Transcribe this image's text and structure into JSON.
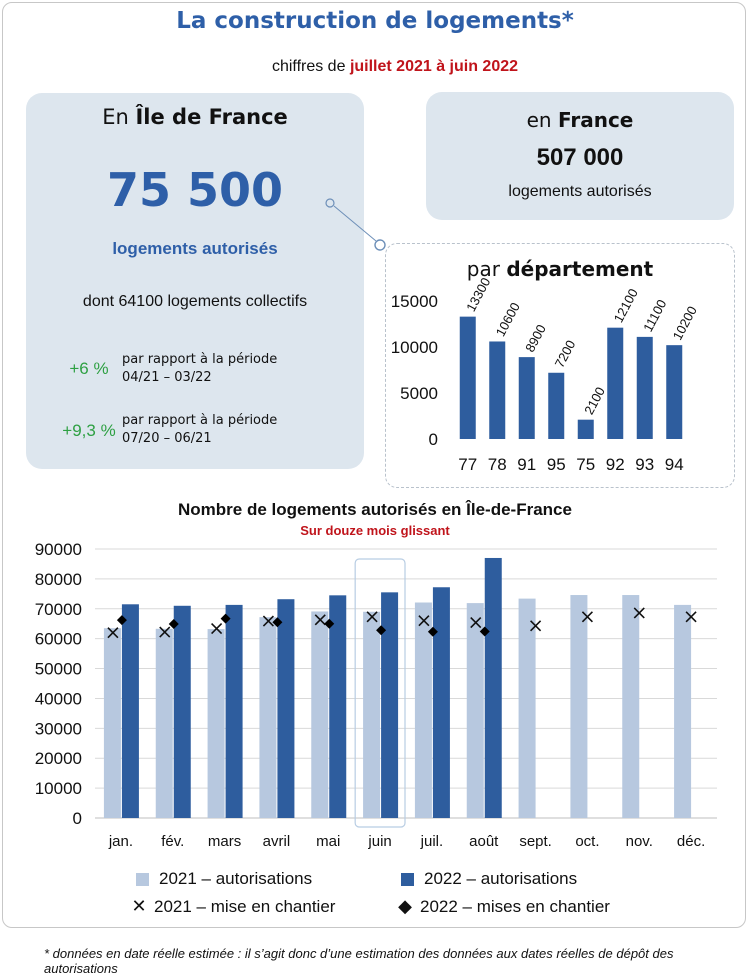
{
  "header": {
    "title": "La construction de logements*",
    "period_prefix": "chiffres de",
    "period_range": "juillet 2021 à juin 2022"
  },
  "idf": {
    "label_prefix": "En",
    "label_region": "Île de France",
    "total": "75 500",
    "unit": "logements autorisés",
    "collectifs": "dont 64100 logements collectifs",
    "comparisons": [
      {
        "pct": "+6 %",
        "line1": "par rapport à la période",
        "line2": "04/21 – 03/22"
      },
      {
        "pct": "+9,3 %",
        "line1": "par rapport à la période",
        "line2": "07/20 – 06/21"
      }
    ]
  },
  "france": {
    "label_prefix": "en",
    "label_region": "France",
    "total": "507 000",
    "unit": "logements autorisés"
  },
  "department_panel": {
    "title_prefix": "par",
    "title_bold": "département"
  },
  "colors": {
    "title_blue": "#2e5fa8",
    "dark_blue": "#2e5d9e",
    "light_blue": "#b7c8df",
    "highlight_red": "#c0141b",
    "green": "#2ea043",
    "card_bg": "#dde6ee"
  },
  "chart_data": [
    {
      "type": "bar",
      "categories": [
        "77",
        "78",
        "91",
        "95",
        "75",
        "92",
        "93",
        "94"
      ],
      "values": [
        13300,
        10600,
        8900,
        7200,
        2100,
        12100,
        11100,
        10200
      ],
      "ylim": [
        0,
        15000
      ],
      "yticks": [
        0,
        5000,
        10000,
        15000
      ],
      "data_labels": true,
      "grid": false
    },
    {
      "type": "bar",
      "title": "Nombre de logements autorisés en Île-de-France",
      "subtitle": "Sur douze mois glissant",
      "categories": [
        "jan.",
        "fév.",
        "mars",
        "avril",
        "mai",
        "juin",
        "juil.",
        "août",
        "sept.",
        "oct.",
        "nov.",
        "déc."
      ],
      "ylim": [
        0,
        90000
      ],
      "yticks": [
        0,
        10000,
        20000,
        30000,
        40000,
        50000,
        60000,
        70000,
        80000,
        90000
      ],
      "grid": true,
      "highlight_category": "juin",
      "legend_position": "bottom",
      "series": [
        {
          "name": "2021 – autorisations",
          "kind": "bar",
          "color": "#b7c8df",
          "values": [
            63500,
            63300,
            63200,
            67200,
            69100,
            69000,
            72100,
            71900,
            73400,
            74600,
            74600,
            71300
          ]
        },
        {
          "name": "2022 – autorisations",
          "kind": "bar",
          "color": "#2e5d9e",
          "values": [
            71500,
            71000,
            71300,
            73200,
            74500,
            75500,
            77200,
            87000,
            null,
            null,
            null,
            null
          ]
        },
        {
          "name": "2021 – mise en chantier",
          "kind": "marker",
          "marker": "cross",
          "values": [
            62000,
            62200,
            63400,
            65900,
            66300,
            67300,
            66000,
            65400,
            64300,
            67300,
            68600,
            67300
          ]
        },
        {
          "name": "2022 – mises en chantier",
          "kind": "marker",
          "marker": "diamond",
          "values": [
            66200,
            64900,
            66700,
            65500,
            65000,
            62800,
            62300,
            62400,
            null,
            null,
            null,
            null
          ]
        }
      ]
    }
  ],
  "footnote": "* données en date réelle estimée : il s’agit donc d’une estimation des données aux dates réelles de dépôt des autorisations"
}
